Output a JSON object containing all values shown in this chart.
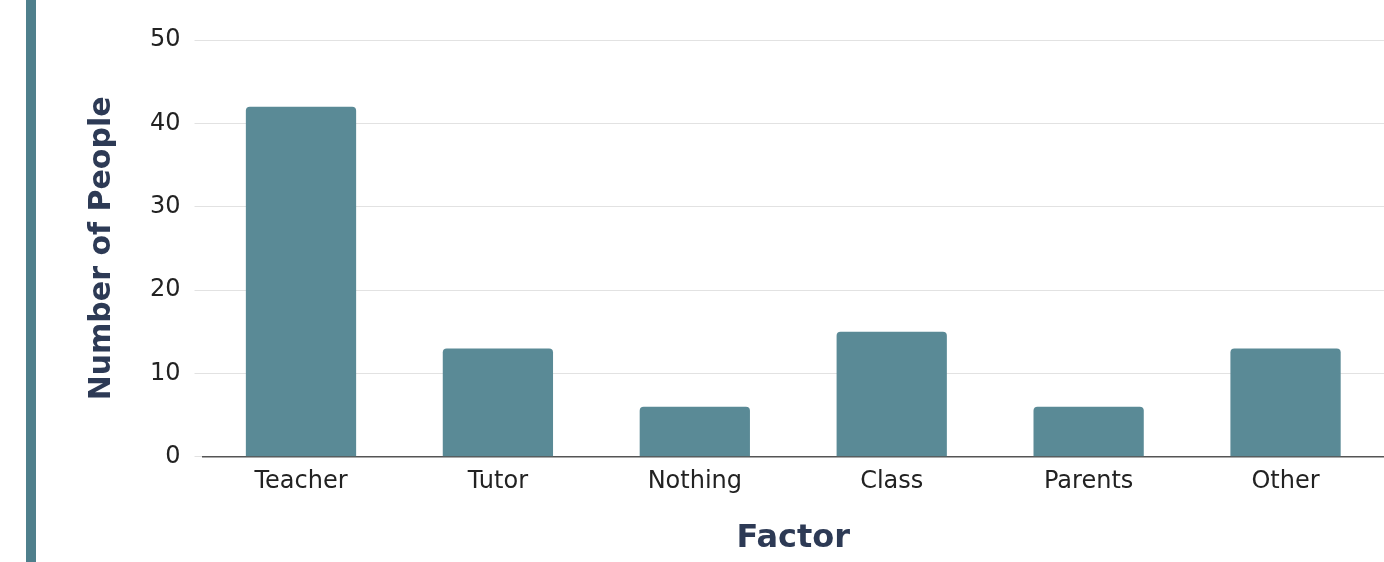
{
  "chart_data": {
    "type": "bar",
    "xlabel": "Factor",
    "ylabel": "Number of People",
    "categories": [
      "Teacher",
      "Tutor",
      "Nothing",
      "Class",
      "Parents",
      "Other"
    ],
    "values": [
      42,
      13,
      6,
      15,
      6,
      13
    ],
    "color": "#5a8a96",
    "ylim": [
      0,
      50
    ],
    "yticks": [
      0,
      10,
      20,
      30,
      40,
      50
    ],
    "grid": "y"
  }
}
